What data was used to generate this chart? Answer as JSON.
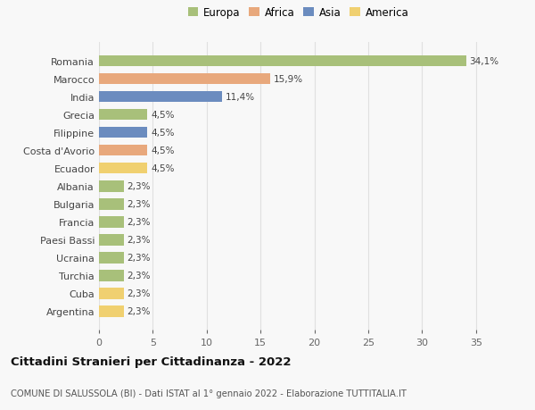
{
  "countries": [
    "Romania",
    "Marocco",
    "India",
    "Grecia",
    "Filippine",
    "Costa d'Avorio",
    "Ecuador",
    "Albania",
    "Bulgaria",
    "Francia",
    "Paesi Bassi",
    "Ucraina",
    "Turchia",
    "Cuba",
    "Argentina"
  ],
  "values": [
    34.1,
    15.9,
    11.4,
    4.5,
    4.5,
    4.5,
    4.5,
    2.3,
    2.3,
    2.3,
    2.3,
    2.3,
    2.3,
    2.3,
    2.3
  ],
  "labels": [
    "34,1%",
    "15,9%",
    "11,4%",
    "4,5%",
    "4,5%",
    "4,5%",
    "4,5%",
    "2,3%",
    "2,3%",
    "2,3%",
    "2,3%",
    "2,3%",
    "2,3%",
    "2,3%",
    "2,3%"
  ],
  "continents": [
    "Europa",
    "Africa",
    "Asia",
    "Europa",
    "Asia",
    "Africa",
    "America",
    "Europa",
    "Europa",
    "Europa",
    "Europa",
    "Europa",
    "Europa",
    "America",
    "America"
  ],
  "colors": {
    "Europa": "#a8c07a",
    "Africa": "#e8a87c",
    "Asia": "#6b8cbf",
    "America": "#f0d070"
  },
  "legend_order": [
    "Europa",
    "Africa",
    "Asia",
    "America"
  ],
  "title": "Cittadini Stranieri per Cittadinanza - 2022",
  "subtitle": "COMUNE DI SALUSSOLA (BI) - Dati ISTAT al 1° gennaio 2022 - Elaborazione TUTTITALIA.IT",
  "xlim": [
    0,
    37
  ],
  "xticks": [
    0,
    5,
    10,
    15,
    20,
    25,
    30,
    35
  ],
  "background_color": "#f8f8f8",
  "bar_height": 0.62,
  "grid_color": "#e0e0e0"
}
